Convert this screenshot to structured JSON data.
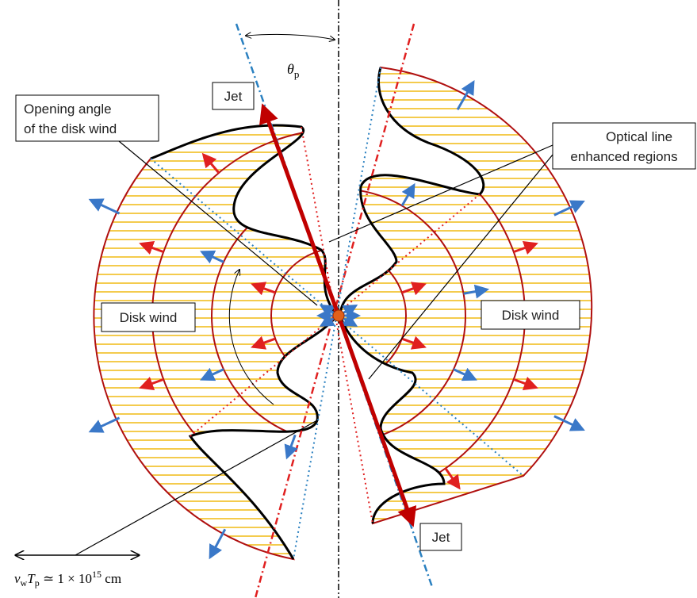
{
  "angle_label": {
    "symbol": "θ",
    "subscript": "p"
  },
  "jet_labels": [
    "Jet",
    "Jet"
  ],
  "opening_angle_label": [
    "Opening angle",
    "of the disk wind"
  ],
  "optical_line_label": [
    "Optical line",
    "enhanced regions"
  ],
  "disk_wind_labels": [
    "Disk wind",
    "Disk wind"
  ],
  "scale_label": {
    "v": "v",
    "v_sub": "w",
    "t": "T",
    "t_sub": "p",
    "middle": " ≃ 1 × 10",
    "exponent": "15",
    "unit": " cm"
  }
}
